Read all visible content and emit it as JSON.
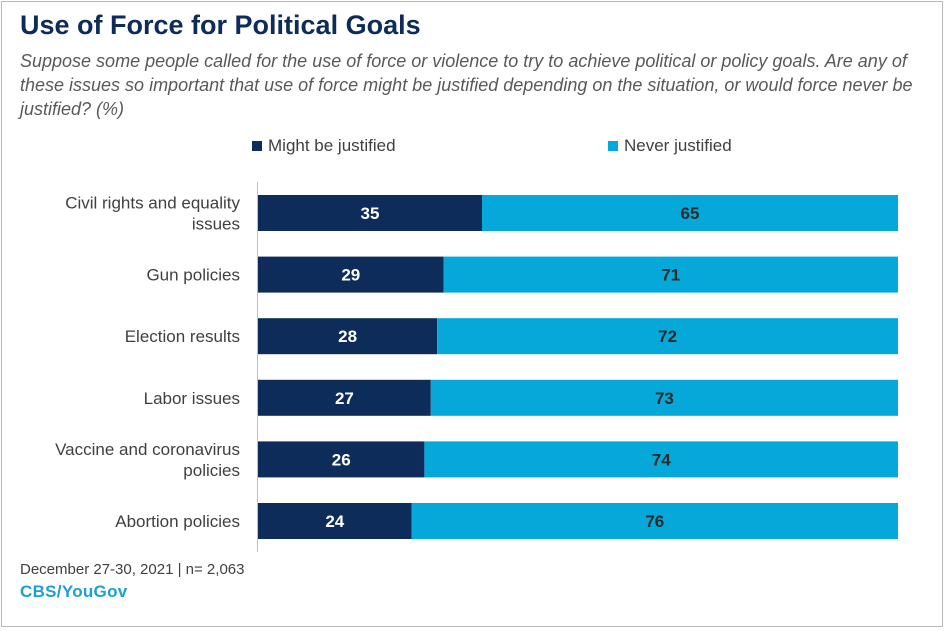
{
  "title": "Use of Force for Political Goals",
  "subtitle": "Suppose some people called for the use of force or violence to try to achieve political or policy goals. Are any of these issues so important that use of force might be justified depending on the situation, or would force never be justified? (%)",
  "footer": {
    "date_sample": "December 27-30, 2021 | n= 2,063",
    "source": "CBS/YouGov"
  },
  "colors": {
    "might": "#0d2c5a",
    "never": "#05a8d8",
    "title": "#0d2c5a",
    "source": "#1aa0d2"
  },
  "chart_data": {
    "type": "bar",
    "orientation": "horizontal",
    "stacked": true,
    "categories": [
      [
        "Civil rights and equality",
        "issues"
      ],
      [
        "Gun policies"
      ],
      [
        "Election results"
      ],
      [
        "Labor issues"
      ],
      [
        "Vaccine and coronavirus",
        "policies"
      ],
      [
        "Abortion policies"
      ]
    ],
    "series": [
      {
        "name": "Might be justified",
        "values": [
          35,
          29,
          28,
          27,
          26,
          24
        ]
      },
      {
        "name": "Never justified",
        "values": [
          65,
          71,
          72,
          73,
          74,
          76
        ]
      }
    ],
    "xlim": [
      0,
      100
    ],
    "legend": "top",
    "grid": false
  }
}
